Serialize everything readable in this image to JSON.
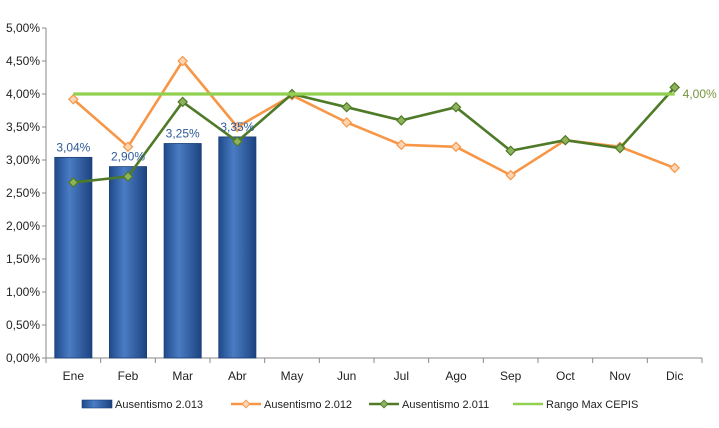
{
  "chart_data": {
    "type": "bar+line",
    "categories": [
      "Ene",
      "Feb",
      "Mar",
      "Abr",
      "May",
      "Jun",
      "Jul",
      "Ago",
      "Sep",
      "Oct",
      "Nov",
      "Dic"
    ],
    "y_ticks": [
      "0,00%",
      "0,50%",
      "1,00%",
      "1,50%",
      "2,00%",
      "2,50%",
      "3,00%",
      "3,50%",
      "4,00%",
      "4,50%",
      "5,00%"
    ],
    "ylim": [
      0,
      5
    ],
    "grid": false,
    "legend_position": "bottom",
    "series": [
      {
        "name": "Ausentismo 2.013",
        "kind": "bar",
        "color": "#3c6cb4",
        "values": [
          3.04,
          2.9,
          3.25,
          3.35,
          null,
          null,
          null,
          null,
          null,
          null,
          null,
          null
        ],
        "labels": [
          "3,04%",
          "2,90%",
          "3,25%",
          "3,35%"
        ]
      },
      {
        "name": "Ausentismo 2.012",
        "kind": "line",
        "color": "#f79646",
        "values": [
          3.92,
          3.2,
          4.5,
          3.5,
          3.98,
          3.57,
          3.23,
          3.2,
          2.77,
          3.3,
          3.2,
          2.88
        ]
      },
      {
        "name": "Ausentismo 2.011",
        "kind": "line",
        "color": "#4f7a28",
        "values": [
          2.66,
          2.75,
          3.88,
          3.28,
          4.0,
          3.8,
          3.6,
          3.8,
          3.14,
          3.3,
          3.18,
          4.1
        ]
      },
      {
        "name": "Rango Max CEPIS",
        "kind": "line",
        "color": "#92d050",
        "values": [
          4.0,
          4.0,
          4.0,
          4.0,
          4.0,
          4.0,
          4.0,
          4.0,
          4.0,
          4.0,
          4.0,
          4.0
        ],
        "end_label": "4,00%"
      }
    ]
  }
}
